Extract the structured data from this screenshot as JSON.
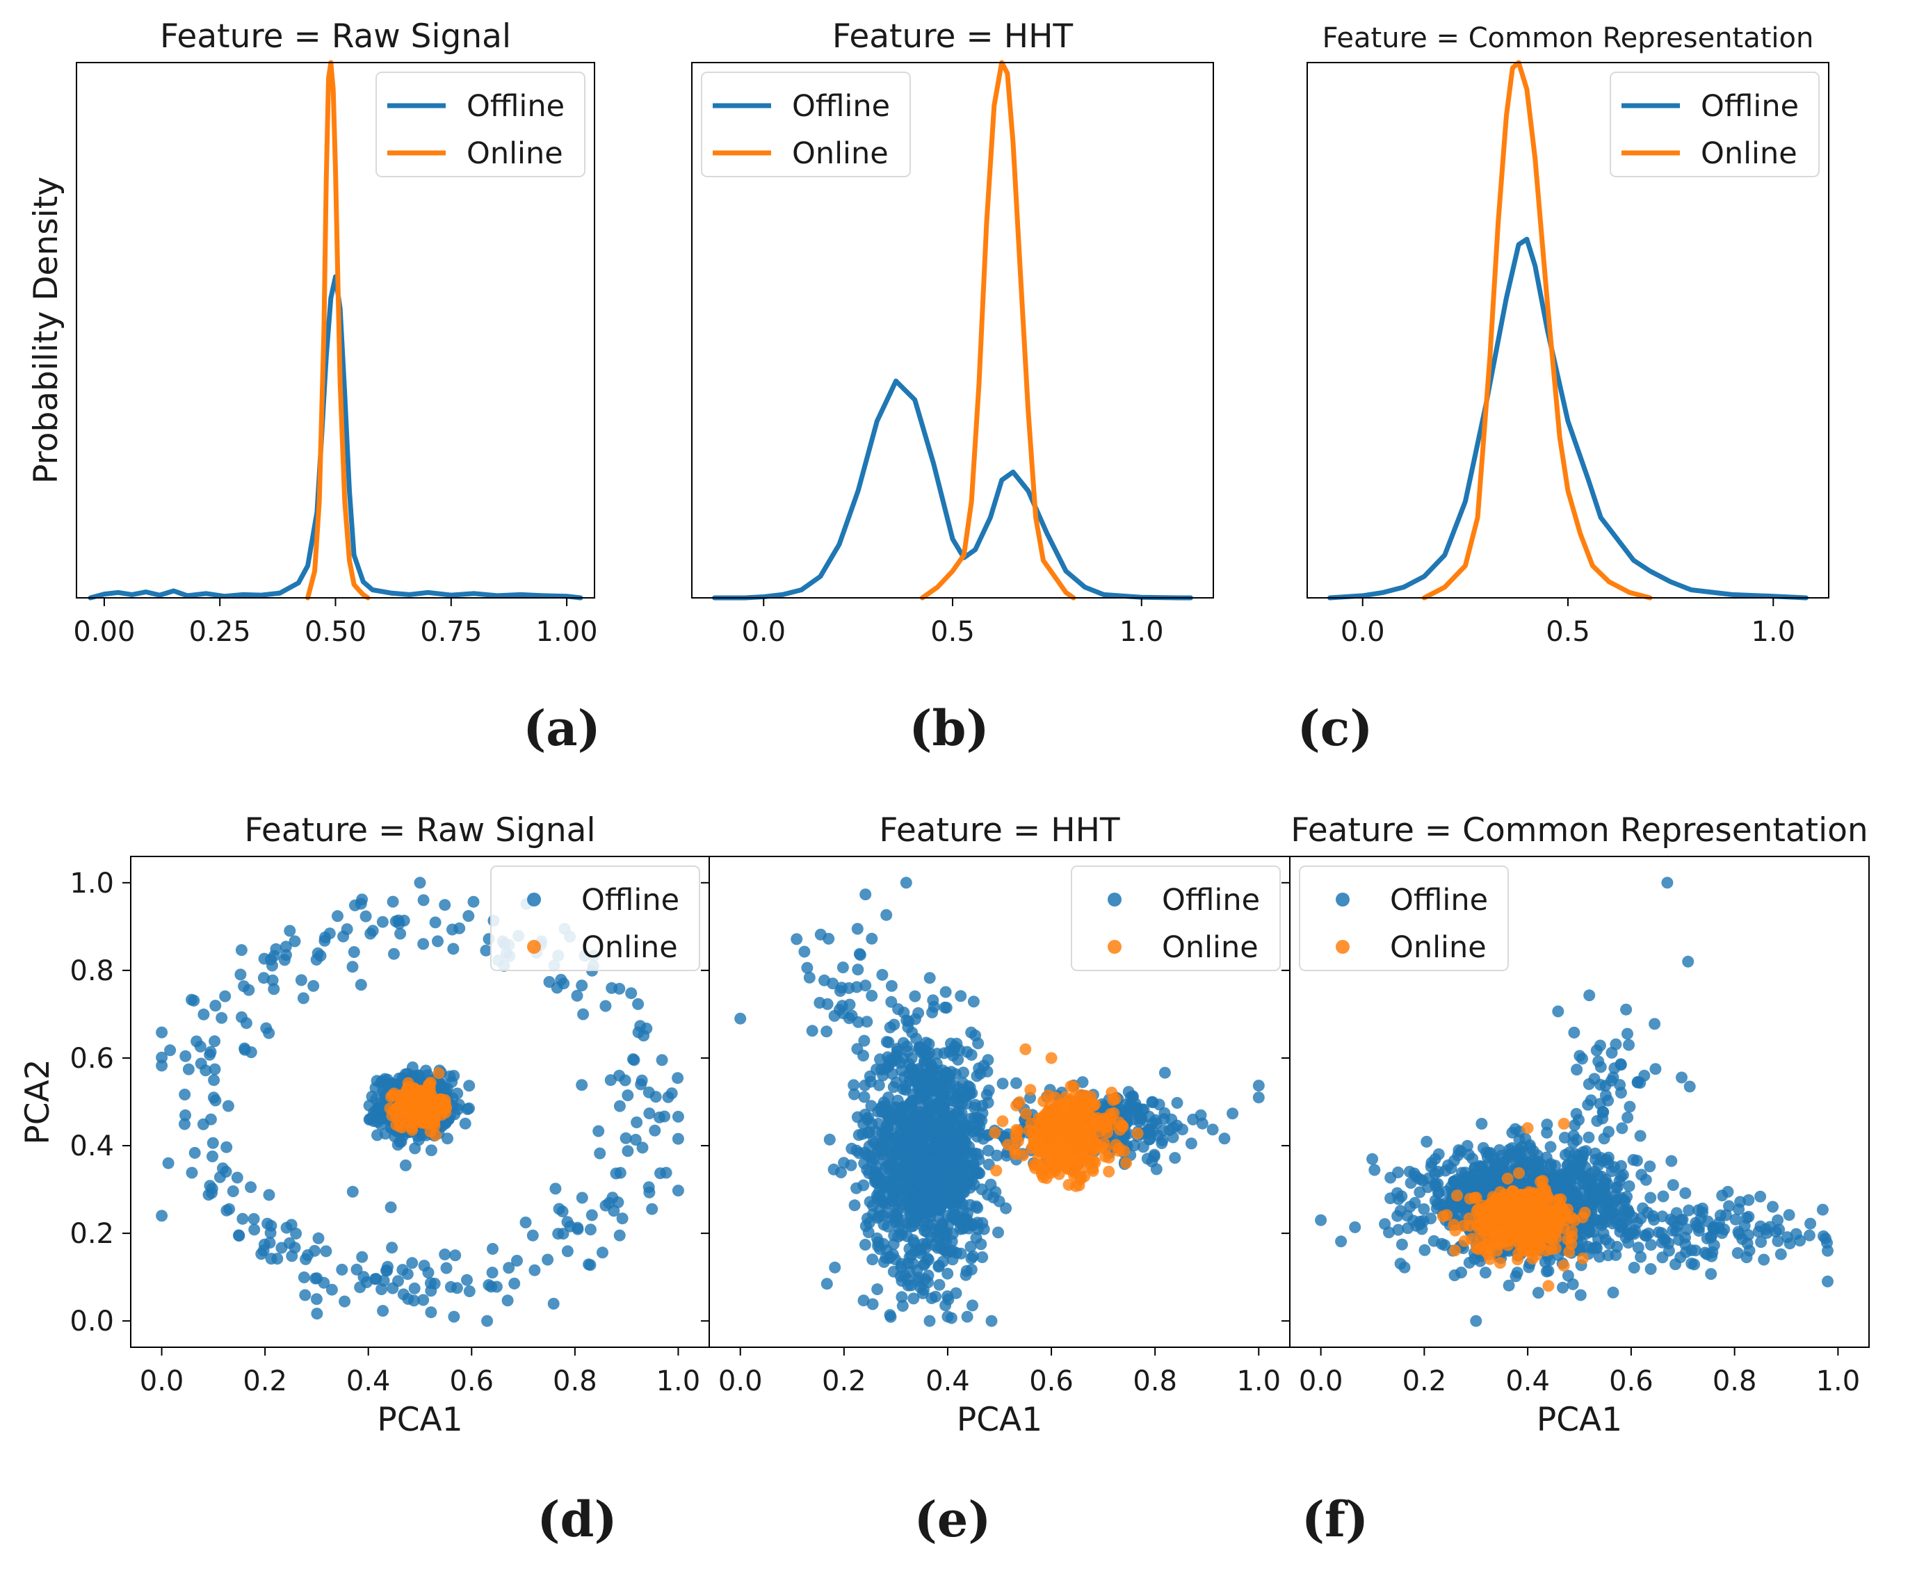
{
  "colors": {
    "offline": "#1f77b4",
    "online": "#ff7f0e"
  },
  "captions": [
    "(a)",
    "(b)",
    "(c)",
    "(d)",
    "(e)",
    "(f)"
  ],
  "chart_data": [
    {
      "type": "line",
      "title": "Feature = Raw Signal",
      "ylabel": "Probability Density",
      "xlabel": "",
      "xlim": [
        -0.06,
        1.06
      ],
      "ylim": [
        0,
        1.0
      ],
      "xticks": [
        0.0,
        0.25,
        0.5,
        0.75,
        1.0
      ],
      "xtick_labels": [
        "0.00",
        "0.25",
        "0.50",
        "0.75",
        "1.00"
      ],
      "legend": [
        "Offline",
        "Online"
      ],
      "series": [
        {
          "name": "Offline",
          "x": [
            -0.03,
            0.0,
            0.03,
            0.06,
            0.09,
            0.12,
            0.15,
            0.18,
            0.22,
            0.26,
            0.3,
            0.34,
            0.38,
            0.42,
            0.44,
            0.46,
            0.47,
            0.48,
            0.49,
            0.5,
            0.51,
            0.52,
            0.53,
            0.54,
            0.56,
            0.58,
            0.62,
            0.66,
            0.7,
            0.75,
            0.8,
            0.85,
            0.9,
            0.95,
            1.0,
            1.03
          ],
          "y": [
            0.0,
            0.007,
            0.01,
            0.006,
            0.011,
            0.005,
            0.013,
            0.004,
            0.008,
            0.003,
            0.006,
            0.005,
            0.009,
            0.028,
            0.06,
            0.16,
            0.3,
            0.45,
            0.56,
            0.6,
            0.54,
            0.38,
            0.2,
            0.08,
            0.03,
            0.015,
            0.009,
            0.006,
            0.01,
            0.005,
            0.008,
            0.004,
            0.006,
            0.004,
            0.003,
            0.0
          ]
        },
        {
          "name": "Online",
          "x": [
            0.44,
            0.455,
            0.465,
            0.475,
            0.48,
            0.485,
            0.49,
            0.495,
            0.5,
            0.505,
            0.51,
            0.52,
            0.53,
            0.54,
            0.55,
            0.56,
            0.57
          ],
          "y": [
            0.0,
            0.05,
            0.18,
            0.5,
            0.78,
            0.97,
            1.0,
            0.95,
            0.8,
            0.6,
            0.4,
            0.18,
            0.07,
            0.025,
            0.015,
            0.006,
            0.0
          ]
        }
      ]
    },
    {
      "type": "line",
      "title": "Feature = HHT",
      "xlabel": "",
      "xlim": [
        -0.19,
        1.19
      ],
      "ylim": [
        0,
        1.0
      ],
      "xticks": [
        0.0,
        0.5,
        1.0
      ],
      "xtick_labels": [
        "0.0",
        "0.5",
        "1.0"
      ],
      "legend": [
        "Offline",
        "Online"
      ],
      "series": [
        {
          "name": "Offline",
          "x": [
            -0.13,
            -0.05,
            0.0,
            0.05,
            0.1,
            0.15,
            0.2,
            0.25,
            0.3,
            0.35,
            0.4,
            0.45,
            0.5,
            0.53,
            0.56,
            0.6,
            0.63,
            0.66,
            0.7,
            0.75,
            0.8,
            0.85,
            0.9,
            1.0,
            1.1,
            1.13
          ],
          "y": [
            0.0,
            0.0,
            0.002,
            0.006,
            0.015,
            0.04,
            0.1,
            0.2,
            0.33,
            0.405,
            0.37,
            0.25,
            0.11,
            0.075,
            0.09,
            0.15,
            0.22,
            0.235,
            0.2,
            0.12,
            0.05,
            0.02,
            0.006,
            0.001,
            0.0,
            0.0
          ]
        },
        {
          "name": "Online",
          "x": [
            0.42,
            0.46,
            0.5,
            0.53,
            0.55,
            0.57,
            0.59,
            0.61,
            0.63,
            0.645,
            0.66,
            0.68,
            0.7,
            0.72,
            0.74,
            0.76,
            0.78,
            0.8,
            0.82
          ],
          "y": [
            0.0,
            0.02,
            0.05,
            0.08,
            0.18,
            0.4,
            0.7,
            0.92,
            1.0,
            0.98,
            0.85,
            0.6,
            0.35,
            0.15,
            0.07,
            0.05,
            0.03,
            0.01,
            0.0
          ]
        }
      ]
    },
    {
      "type": "line",
      "title": "Feature = Common Representation",
      "xlabel": "",
      "xlim": [
        -0.135,
        1.135
      ],
      "ylim": [
        0,
        1.0
      ],
      "xticks": [
        0.0,
        0.5,
        1.0
      ],
      "xtick_labels": [
        "0.0",
        "0.5",
        "1.0"
      ],
      "legend": [
        "Offline",
        "Online"
      ],
      "series": [
        {
          "name": "Offline",
          "x": [
            -0.08,
            0.0,
            0.05,
            0.1,
            0.15,
            0.2,
            0.25,
            0.3,
            0.35,
            0.38,
            0.4,
            0.42,
            0.45,
            0.5,
            0.55,
            0.58,
            0.6,
            0.63,
            0.66,
            0.7,
            0.75,
            0.8,
            0.9,
            1.0,
            1.08
          ],
          "y": [
            0.0,
            0.004,
            0.01,
            0.02,
            0.04,
            0.08,
            0.18,
            0.36,
            0.56,
            0.66,
            0.67,
            0.62,
            0.5,
            0.33,
            0.22,
            0.15,
            0.13,
            0.1,
            0.07,
            0.05,
            0.03,
            0.015,
            0.006,
            0.003,
            0.0
          ]
        },
        {
          "name": "Online",
          "x": [
            0.15,
            0.2,
            0.25,
            0.28,
            0.31,
            0.33,
            0.35,
            0.365,
            0.38,
            0.4,
            0.42,
            0.45,
            0.48,
            0.5,
            0.53,
            0.56,
            0.6,
            0.65,
            0.7
          ],
          "y": [
            0.0,
            0.02,
            0.06,
            0.15,
            0.45,
            0.7,
            0.9,
            0.99,
            1.0,
            0.95,
            0.82,
            0.55,
            0.3,
            0.2,
            0.12,
            0.06,
            0.03,
            0.01,
            0.0
          ]
        }
      ]
    },
    {
      "type": "scatter",
      "title": "Feature = Raw Signal",
      "xlabel": "PCA1",
      "ylabel": "PCA2",
      "xlim": [
        -0.06,
        1.06
      ],
      "ylim": [
        -0.06,
        1.06
      ],
      "xticks": [
        0.0,
        0.2,
        0.4,
        0.6,
        0.8,
        1.0
      ],
      "xtick_labels": [
        "0.0",
        "0.2",
        "0.4",
        "0.6",
        "0.8",
        "1.0"
      ],
      "yticks": [
        0.0,
        0.2,
        0.4,
        0.6,
        0.8,
        1.0
      ],
      "ytick_labels": [
        "0.0",
        "0.2",
        "0.4",
        "0.6",
        "0.8",
        "1.0"
      ],
      "legend": [
        "Offline",
        "Online"
      ],
      "series": [
        {
          "name": "Offline",
          "clusters": [
            {
              "shape": "ring",
              "center": [
                0.5,
                0.5
              ],
              "radius": [
                0.44,
                0.42
              ],
              "spread": 0.045,
              "n": 300
            },
            {
              "shape": "blob",
              "center": [
                0.49,
                0.49
              ],
              "sigma": [
                0.035,
                0.035
              ],
              "n": 450
            }
          ],
          "points": [
            [
              0.5,
              1.0
            ],
            [
              0.3,
              0.05
            ],
            [
              0.63,
              0.0
            ]
          ]
        },
        {
          "name": "Online",
          "clusters": [
            {
              "shape": "blob",
              "center": [
                0.5,
                0.49
              ],
              "sigma": [
                0.022,
                0.022
              ],
              "n": 300
            }
          ],
          "points": []
        }
      ]
    },
    {
      "type": "scatter",
      "title": "Feature = HHT",
      "xlabel": "PCA1",
      "xlim": [
        -0.06,
        1.06
      ],
      "ylim": [
        -0.06,
        1.06
      ],
      "xticks": [
        0.0,
        0.2,
        0.4,
        0.6,
        0.8,
        1.0
      ],
      "xtick_labels": [
        "0.0",
        "0.2",
        "0.4",
        "0.6",
        "0.8",
        "1.0"
      ],
      "legend": [
        "Offline",
        "Online"
      ],
      "series": [
        {
          "name": "Offline",
          "clusters": [
            {
              "shape": "blob",
              "center": [
                0.36,
                0.38
              ],
              "sigma": [
                0.06,
                0.14
              ],
              "n": 1100
            },
            {
              "shape": "blob",
              "center": [
                0.7,
                0.45
              ],
              "sigma": [
                0.09,
                0.04
              ],
              "n": 250
            },
            {
              "shape": "blob",
              "center": [
                0.2,
                0.75
              ],
              "sigma": [
                0.06,
                0.08
              ],
              "n": 40
            }
          ],
          "points": [
            [
              0.0,
              0.69
            ],
            [
              0.32,
              1.0
            ],
            [
              1.0,
              0.51
            ],
            [
              0.4,
              0.01
            ]
          ]
        },
        {
          "name": "Online",
          "clusters": [
            {
              "shape": "blob",
              "center": [
                0.63,
                0.42
              ],
              "sigma": [
                0.045,
                0.045
              ],
              "n": 420
            }
          ],
          "points": [
            [
              0.6,
              0.6
            ],
            [
              0.55,
              0.62
            ]
          ]
        }
      ]
    },
    {
      "type": "scatter",
      "title": "Feature = Common Representation",
      "xlabel": "PCA1",
      "xlim": [
        -0.06,
        1.06
      ],
      "ylim": [
        -0.06,
        1.06
      ],
      "xticks": [
        0.0,
        0.2,
        0.4,
        0.6,
        0.8,
        1.0
      ],
      "xtick_labels": [
        "0.0",
        "0.2",
        "0.4",
        "0.6",
        "0.8",
        "1.0"
      ],
      "legend": [
        "Offline",
        "Online"
      ],
      "series": [
        {
          "name": "Offline",
          "clusters": [
            {
              "shape": "blob",
              "center": [
                0.4,
                0.27
              ],
              "sigma": [
                0.1,
                0.06
              ],
              "n": 1000
            },
            {
              "shape": "blob",
              "center": [
                0.75,
                0.2
              ],
              "sigma": [
                0.11,
                0.04
              ],
              "n": 120
            },
            {
              "shape": "blob",
              "center": [
                0.55,
                0.5
              ],
              "sigma": [
                0.05,
                0.1
              ],
              "n": 60
            }
          ],
          "points": [
            [
              0.67,
              1.0
            ],
            [
              0.71,
              0.82
            ],
            [
              0.3,
              0.0
            ],
            [
              0.0,
              0.23
            ],
            [
              0.98,
              0.16
            ],
            [
              0.98,
              0.09
            ]
          ]
        },
        {
          "name": "Online",
          "clusters": [
            {
              "shape": "blob",
              "center": [
                0.39,
                0.23
              ],
              "sigma": [
                0.05,
                0.035
              ],
              "n": 420
            }
          ],
          "points": [
            [
              0.4,
              0.44
            ],
            [
              0.47,
              0.45
            ],
            [
              0.44,
              0.08
            ]
          ]
        }
      ]
    }
  ]
}
